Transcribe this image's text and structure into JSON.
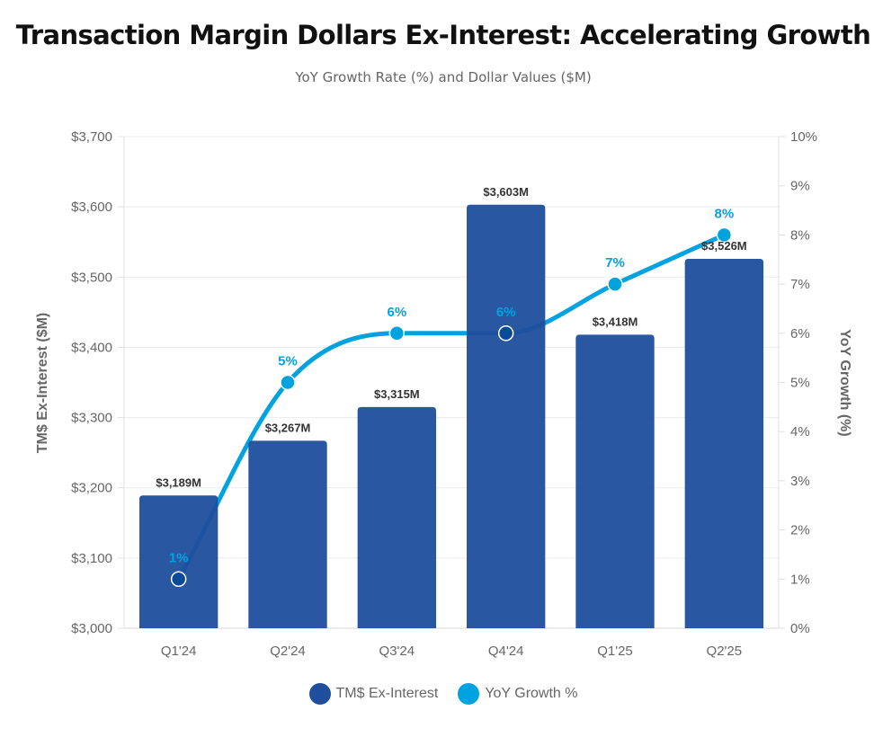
{
  "chart_data": {
    "type": "bar",
    "title": "Transaction Margin Dollars Ex-Interest: Accelerating Growth",
    "subtitle": "YoY Growth Rate (%) and Dollar Values ($M)",
    "categories": [
      "Q1'24",
      "Q2'24",
      "Q3'24",
      "Q4'24",
      "Q1'25",
      "Q2'25"
    ],
    "series": [
      {
        "name": "TM$ Ex-Interest",
        "type": "bar",
        "axis": "left",
        "color": "#1f4e9c",
        "values": [
          3189,
          3267,
          3315,
          3603,
          3418,
          3526
        ],
        "labels": [
          "$3,189M",
          "$3,267M",
          "$3,315M",
          "$3,603M",
          "$3,418M",
          "$3,526M"
        ]
      },
      {
        "name": "YoY Growth %",
        "type": "line",
        "axis": "right",
        "color": "#00a3e0",
        "values": [
          1,
          5,
          6,
          6,
          7,
          8
        ],
        "labels": [
          "1%",
          "5%",
          "6%",
          "6%",
          "7%",
          "8%"
        ]
      }
    ],
    "ylabel": "TM$ Ex-Interest ($M)",
    "y2label": "YoY Growth (%)",
    "ylim": [
      3000,
      3700
    ],
    "y2lim": [
      0,
      10
    ],
    "yticks": [
      "$3,000",
      "$3,100",
      "$3,200",
      "$3,300",
      "$3,400",
      "$3,500",
      "$3,600",
      "$3,700"
    ],
    "y2ticks": [
      "0%",
      "1%",
      "2%",
      "3%",
      "4%",
      "5%",
      "6%",
      "7%",
      "8%",
      "9%",
      "10%"
    ],
    "grid": true,
    "legend": "bottom-center"
  }
}
